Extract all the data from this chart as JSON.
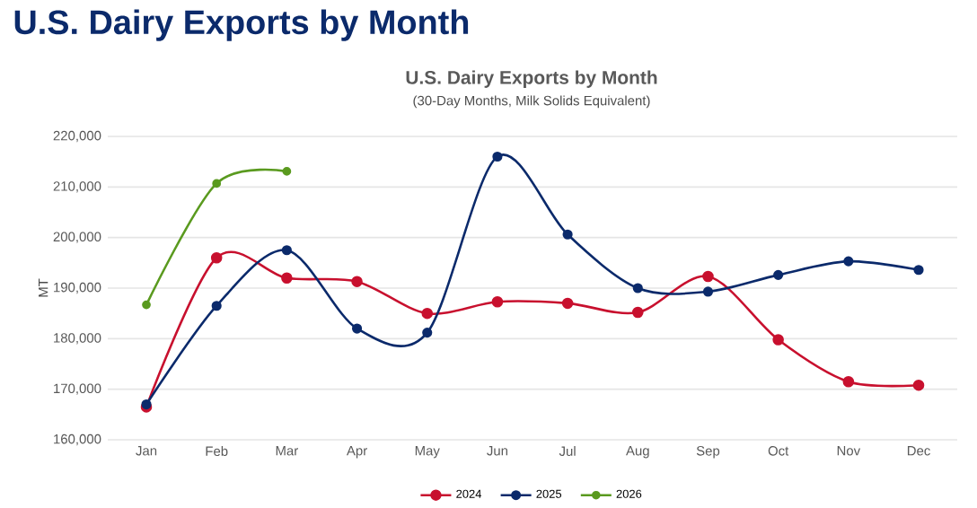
{
  "chart_data": {
    "type": "line",
    "title": "U.S. Dairy Exports by Month",
    "subtitle": "U.S. Dairy Exports by Month",
    "annotations": [
      "(30-Day Months, Milk Solids Equivalent)"
    ],
    "ylabel": "MT",
    "categories": [
      "Jan",
      "Feb",
      "Mar",
      "Apr",
      "May",
      "Jun",
      "Jul",
      "Aug",
      "Sep",
      "Oct",
      "Nov",
      "Dec"
    ],
    "series": [
      {
        "name": "2024",
        "color": "#c8102e",
        "values": [
          166500,
          196000,
          192000,
          191300,
          185000,
          187300,
          187000,
          185200,
          192300,
          179800,
          171500,
          170800
        ]
      },
      {
        "name": "2025",
        "color": "#0b2a6b",
        "values": [
          167000,
          186500,
          197500,
          182000,
          181200,
          216000,
          200600,
          190000,
          189300,
          192600,
          195300,
          193600
        ]
      },
      {
        "name": "2026",
        "color": "#5a9a1f",
        "values": [
          186700,
          210700,
          213100,
          null,
          null,
          null,
          null,
          null,
          null,
          null,
          null,
          null
        ]
      }
    ],
    "ylim": [
      160000,
      220000
    ],
    "yticks": [
      {
        "value": 160000,
        "label": "160,000"
      },
      {
        "value": 170000,
        "label": "170,000"
      },
      {
        "value": 180000,
        "label": "180,000"
      },
      {
        "value": 190000,
        "label": "190,000"
      },
      {
        "value": 200000,
        "label": "200,000"
      },
      {
        "value": 210000,
        "label": "210,000"
      },
      {
        "value": 220000,
        "label": "220,000"
      }
    ],
    "grid": "y",
    "legend": "bottom",
    "marker": "circle",
    "line_style": "solid"
  }
}
